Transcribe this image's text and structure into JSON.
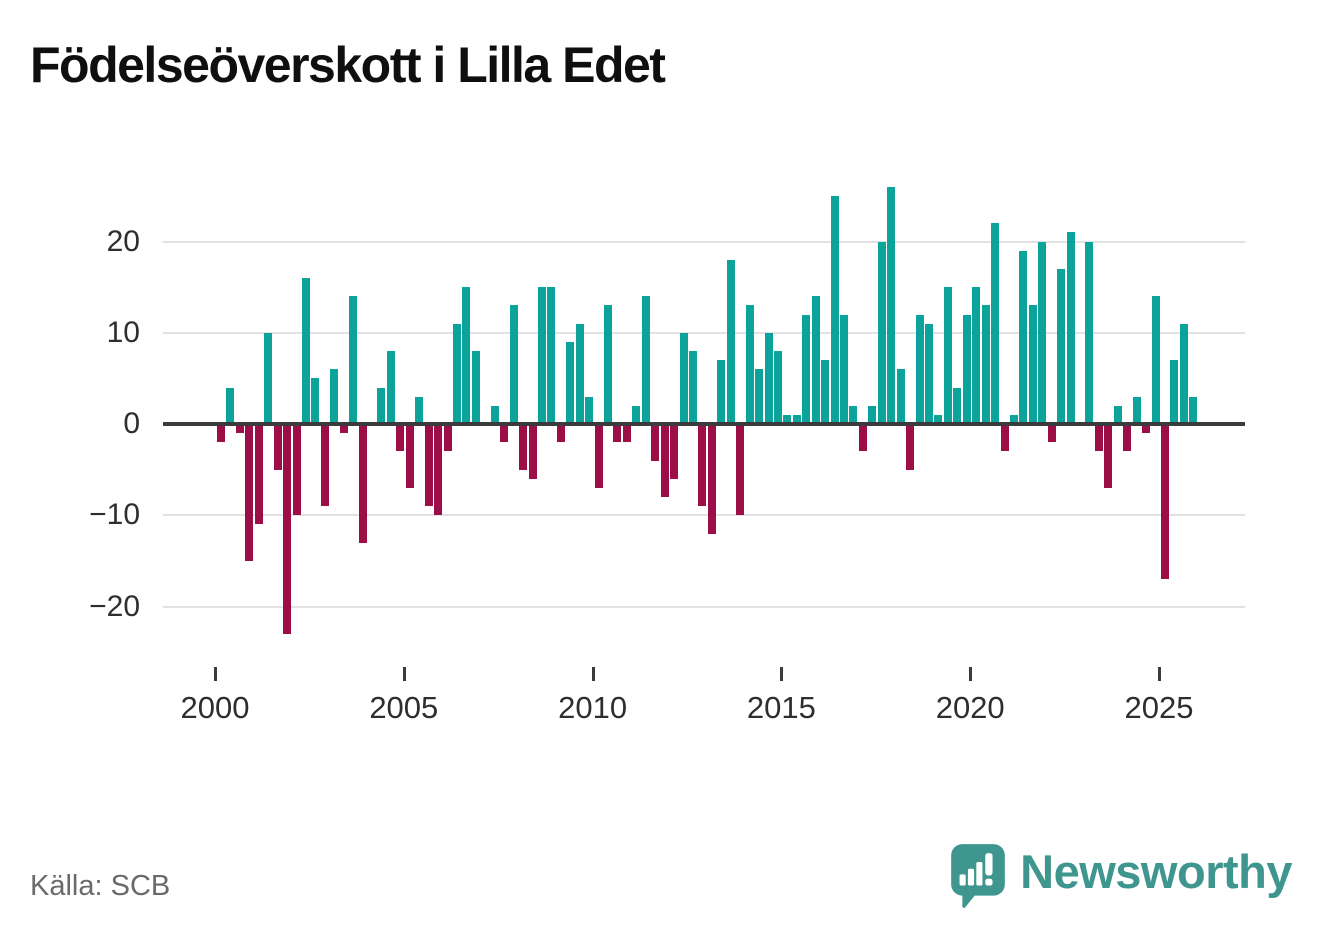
{
  "title": "Födelseöverskott i Lilla Edet",
  "source": "Källa: SCB",
  "logo": {
    "text": "Newsworthy",
    "icon": "newsworthy-speech-bubble-chart-icon"
  },
  "colors": {
    "positive_bar": "#0ba39a",
    "negative_bar": "#9d0d47",
    "grid": "#e2e2e2",
    "zero_axis": "#3b3b3b",
    "tick_text": "#2e2e2e",
    "title_text": "#0f0f0f",
    "source_text": "#6a6a6a",
    "logo_teal": "#3e968e"
  },
  "chart_data": {
    "type": "bar",
    "title": "Födelseöverskott i Lilla Edet",
    "xlabel": "",
    "ylabel": "",
    "x_period": "quarterly",
    "start": "2000-Q1",
    "end": "2025-Q4",
    "values": [
      -2,
      4,
      -1,
      -15,
      -11,
      10,
      -5,
      -23,
      -10,
      16,
      5,
      -9,
      6,
      -1,
      14,
      -13,
      0,
      4,
      8,
      -3,
      -7,
      3,
      -9,
      -10,
      -3,
      11,
      15,
      8,
      0,
      2,
      -2,
      13,
      -5,
      -6,
      15,
      15,
      -2,
      9,
      11,
      3,
      -7,
      13,
      -2,
      -2,
      2,
      14,
      -4,
      -8,
      -6,
      10,
      8,
      -9,
      -12,
      7,
      18,
      -10,
      13,
      6,
      10,
      8,
      1,
      1,
      12,
      14,
      7,
      25,
      12,
      2,
      -3,
      2,
      20,
      26,
      6,
      -5,
      12,
      11,
      1,
      15,
      4,
      12,
      15,
      13,
      22,
      -3,
      1,
      19,
      13,
      20,
      -2,
      17,
      21,
      0,
      20,
      -3,
      -7,
      2,
      -3,
      3,
      -1,
      14,
      -17,
      7,
      11,
      3
    ],
    "x_tick_years": [
      2000,
      2005,
      2010,
      2015,
      2020,
      2025
    ],
    "x_tick_labels": [
      "2000",
      "2005",
      "2010",
      "2015",
      "2020",
      "2025"
    ],
    "y_ticks": [
      {
        "value": 20,
        "label": "20"
      },
      {
        "value": 10,
        "label": "10"
      },
      {
        "value": 0,
        "label": "0"
      },
      {
        "value": -10,
        "label": "−10"
      },
      {
        "value": -20,
        "label": "−20"
      }
    ],
    "ylim": [
      -24,
      27
    ],
    "grid": true,
    "legend": false
  }
}
